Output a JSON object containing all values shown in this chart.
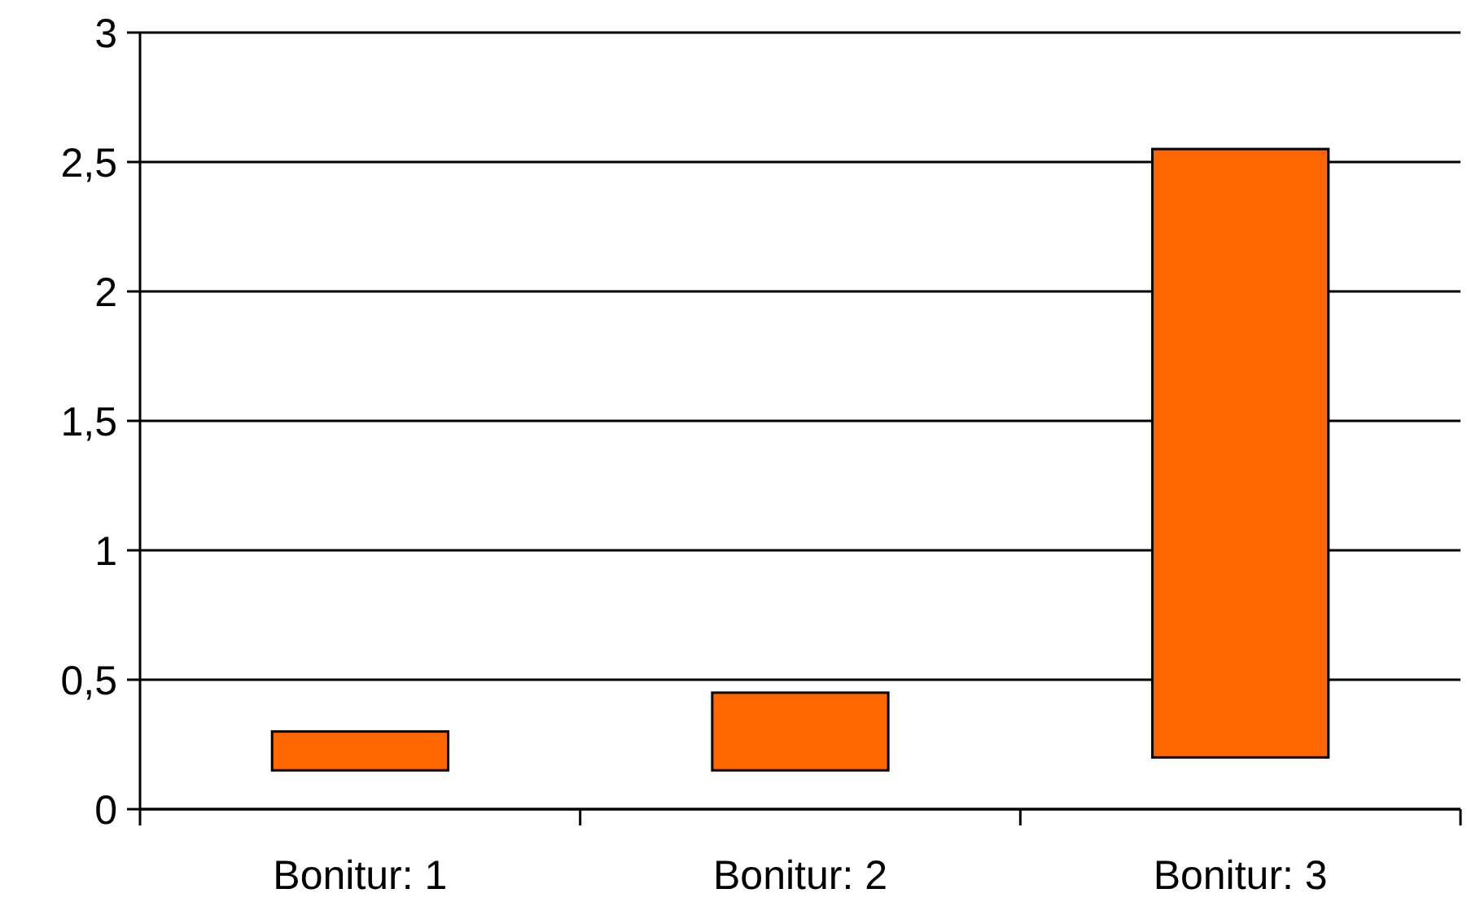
{
  "chart_data": {
    "type": "bar",
    "categories": [
      "Bonitur: 1",
      "Bonitur: 2",
      "Bonitur: 3"
    ],
    "values": [
      0.15,
      0.3,
      2.35
    ],
    "base": [
      0.15,
      0.15,
      0.2
    ],
    "color": "#ff6600",
    "ylim": [
      0,
      3
    ],
    "yticks": [
      0,
      {
        "value": 0.5,
        "label": "0,5"
      },
      1,
      {
        "value": 1.5,
        "label": "1,5"
      },
      2,
      {
        "value": 2.5,
        "label": "2,5"
      },
      3
    ],
    "grid": "y"
  }
}
